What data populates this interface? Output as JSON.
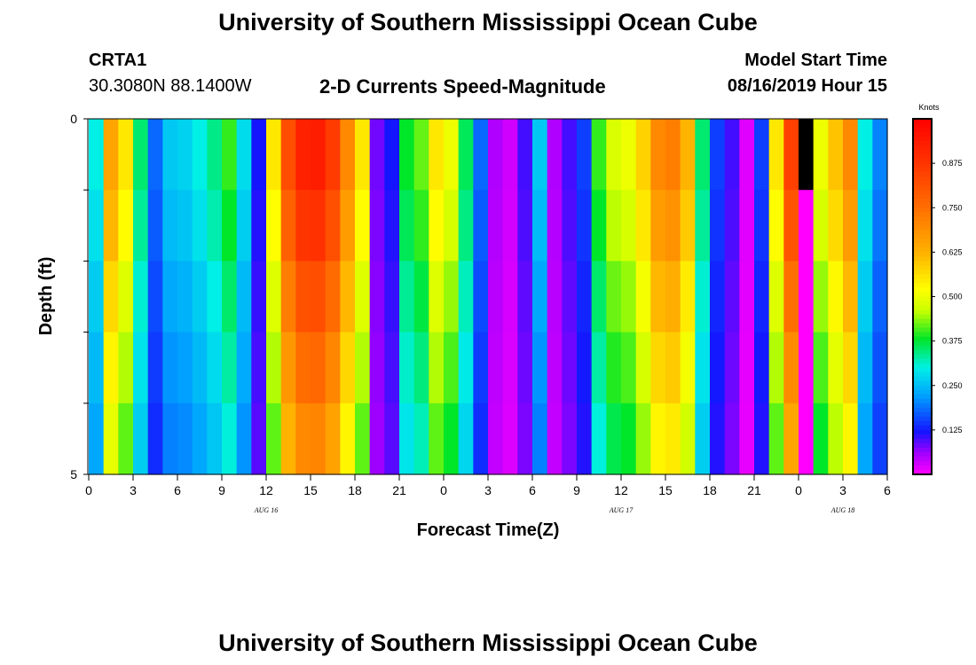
{
  "page": {
    "title_top": "University of Southern Mississippi Ocean Cube",
    "title_bottom": "University of Southern Mississippi Ocean Cube",
    "station_id": "CRTA1",
    "station_coords": "30.3080N 88.1400W",
    "plot_title": "2-D Currents Speed-Magnitude",
    "model_label": "Model Start Time",
    "model_time": "08/16/2019 Hour 15"
  },
  "chart_data": {
    "type": "heatmap",
    "title": "2-D Currents Speed-Magnitude",
    "xlabel": "Forecast Time(Z)",
    "ylabel": "Depth (ft)",
    "colorbar_label": "Knots",
    "colorbar_ticks": [
      "0.125",
      "0.250",
      "0.375",
      "0.500",
      "0.625",
      "0.750",
      "0.875"
    ],
    "colorbar_range": [
      0.0,
      1.0
    ],
    "xlim": [
      0,
      54
    ],
    "ylim": [
      0,
      5
    ],
    "y_ticks": [
      {
        "value": 0,
        "label": "0"
      },
      {
        "value": 5,
        "label": "5"
      }
    ],
    "x_tick_labels": [
      "0",
      "3",
      "6",
      "9",
      "12",
      "15",
      "18",
      "21",
      "0",
      "3",
      "6",
      "9",
      "12",
      "15",
      "18",
      "21",
      "0",
      "3",
      "6"
    ],
    "x_tick_hours": [
      0,
      3,
      6,
      9,
      12,
      15,
      18,
      21,
      24,
      27,
      30,
      33,
      36,
      39,
      42,
      45,
      48,
      51,
      54
    ],
    "date_labels": [
      {
        "hour": 12,
        "label": "AUG 16"
      },
      {
        "hour": 36,
        "label": "AUG 17"
      },
      {
        "hour": 51,
        "label": "AUG 18"
      }
    ],
    "depth_layers": 5,
    "time_step_hours": 1,
    "surface_speed_by_hour": [
      0.3,
      0.65,
      0.55,
      0.35,
      0.18,
      0.26,
      0.27,
      0.3,
      0.34,
      0.4,
      0.28,
      0.12,
      0.55,
      0.82,
      0.92,
      0.93,
      0.86,
      0.7,
      0.55,
      0.08,
      0.12,
      0.38,
      0.42,
      0.55,
      0.5,
      0.36,
      0.18,
      0.05,
      0.03,
      0.1,
      0.26,
      0.05,
      0.1,
      0.15,
      0.4,
      0.48,
      0.5,
      0.58,
      0.7,
      0.72,
      0.62,
      0.35,
      0.15,
      0.1,
      0.02,
      0.15,
      0.55,
      0.85,
      0.0,
      0.5,
      0.6,
      0.7,
      0.3,
      0.2
    ],
    "depth_factor": [
      1.0,
      0.95,
      0.88,
      0.82,
      0.76
    ],
    "masked_cells": [
      {
        "hour": 48,
        "layer": 0
      }
    ]
  }
}
